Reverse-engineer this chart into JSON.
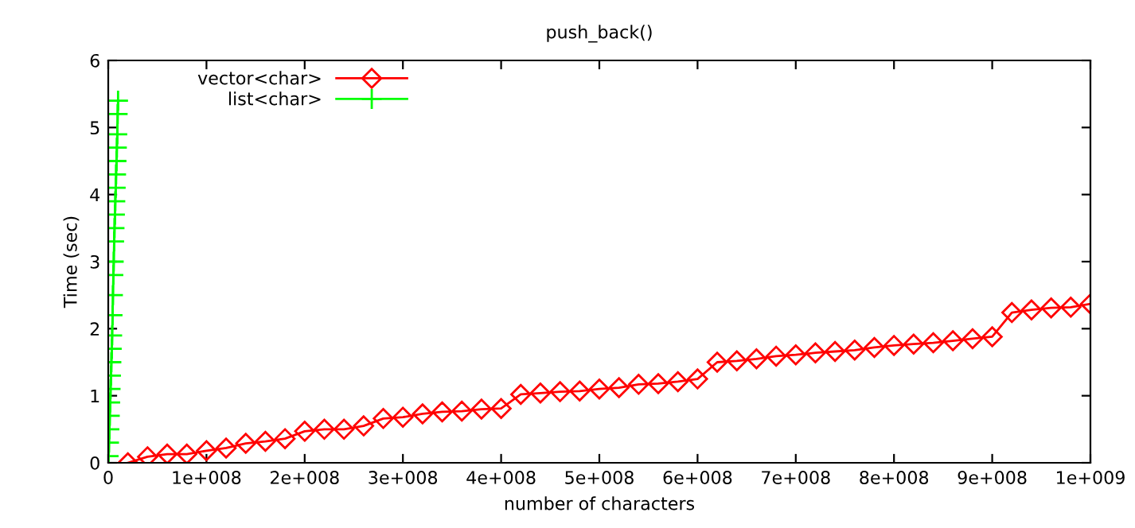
{
  "chart_data": {
    "type": "line",
    "title": "push_back()",
    "xlabel": "number of characters",
    "ylabel": "Time (sec)",
    "xlim": [
      0,
      1000000000
    ],
    "ylim": [
      0,
      6
    ],
    "xticks": [
      0,
      {
        "value": 100000000,
        "label": "1e+008"
      },
      {
        "value": 200000000,
        "label": "2e+008"
      },
      {
        "value": 300000000,
        "label": "3e+008"
      },
      {
        "value": 400000000,
        "label": "4e+008"
      },
      {
        "value": 500000000,
        "label": "5e+008"
      },
      {
        "value": 600000000,
        "label": "6e+008"
      },
      {
        "value": 700000000,
        "label": "7e+008"
      },
      {
        "value": 800000000,
        "label": "8e+008"
      },
      {
        "value": 900000000,
        "label": "9e+008"
      },
      {
        "value": 1000000000,
        "label": "1e+009"
      }
    ],
    "yticks": [
      0,
      1,
      2,
      3,
      4,
      5,
      6
    ],
    "grid": false,
    "legend": "top left",
    "series": [
      {
        "name": "vector<char>",
        "color": "#ff0000",
        "marker": "diamond",
        "x": [
          20000000,
          40000000,
          60000000,
          80000000,
          100000000,
          120000000,
          140000000,
          160000000,
          180000000,
          200000000,
          220000000,
          240000000,
          260000000,
          280000000,
          300000000,
          320000000,
          340000000,
          360000000,
          380000000,
          400000000,
          420000000,
          440000000,
          460000000,
          480000000,
          500000000,
          520000000,
          540000000,
          560000000,
          580000000,
          600000000,
          620000000,
          640000000,
          660000000,
          680000000,
          700000000,
          720000000,
          740000000,
          760000000,
          780000000,
          800000000,
          820000000,
          840000000,
          860000000,
          880000000,
          900000000,
          920000000,
          940000000,
          960000000,
          980000000,
          1000000000
        ],
        "values": [
          0,
          0.09,
          0.13,
          0.13,
          0.18,
          0.22,
          0.29,
          0.32,
          0.36,
          0.47,
          0.5,
          0.5,
          0.55,
          0.66,
          0.68,
          0.73,
          0.76,
          0.77,
          0.8,
          0.81,
          1.02,
          1.04,
          1.06,
          1.07,
          1.1,
          1.12,
          1.17,
          1.18,
          1.21,
          1.25,
          1.5,
          1.52,
          1.55,
          1.59,
          1.61,
          1.64,
          1.66,
          1.68,
          1.72,
          1.75,
          1.77,
          1.79,
          1.82,
          1.85,
          1.88,
          2.24,
          2.28,
          2.31,
          2.32,
          2.37
        ]
      },
      {
        "name": "list<char>",
        "color": "#00ff00",
        "marker": "cross",
        "x": [
          400000,
          800000,
          1200000,
          1600000,
          2000000,
          2400000,
          2800000,
          3200000,
          3600000,
          4000000,
          4400000,
          4800000,
          5200000,
          5600000,
          6000000,
          6400000,
          6800000,
          7200000,
          7600000,
          8000000,
          8400000,
          8800000,
          9200000,
          9600000,
          10000000
        ],
        "values": [
          0.1,
          0.3,
          0.5,
          0.7,
          0.9,
          1.1,
          1.3,
          1.5,
          1.7,
          1.9,
          2.2,
          2.5,
          2.8,
          3.0,
          3.3,
          3.5,
          3.7,
          3.9,
          4.1,
          4.3,
          4.5,
          4.7,
          4.9,
          5.2,
          5.4
        ]
      }
    ]
  }
}
